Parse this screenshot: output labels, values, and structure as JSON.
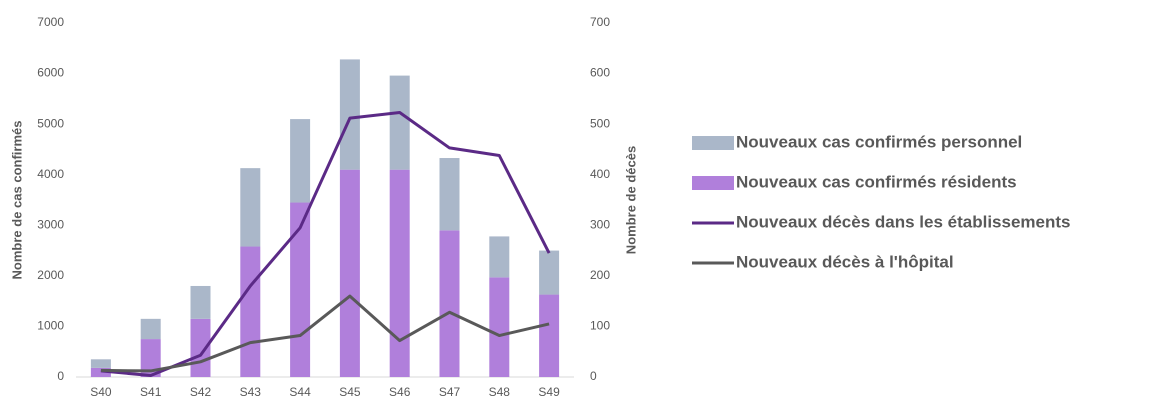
{
  "chart_data": {
    "type": "combo",
    "y_label": "Nombre de cas confirmés",
    "y2_label": "Nombre de décès",
    "categories": [
      "S40",
      "S41",
      "S42",
      "S43",
      "S44",
      "S45",
      "S46",
      "S47",
      "S48",
      "S49"
    ],
    "series": [
      {
        "name": "Nouveaux cas confirmés personnel",
        "type": "bar",
        "color": "#aab7c9",
        "values": [
          170,
          400,
          650,
          1550,
          1650,
          2180,
          1860,
          1430,
          810,
          870
        ]
      },
      {
        "name": "Nouveaux cas confirmés résidents",
        "type": "bar",
        "color": "#b07fdb",
        "values": [
          180,
          750,
          1150,
          2580,
          3450,
          4100,
          4100,
          2900,
          1970,
          1630
        ]
      },
      {
        "name": "Nouveaux décès dans les établissements",
        "type": "line",
        "axis": "y2",
        "color": "#5b2a86",
        "values": [
          12,
          3,
          43,
          180,
          295,
          512,
          523,
          453,
          438,
          245
        ]
      },
      {
        "name": "Nouveaux décès à l'hôpital",
        "type": "line",
        "axis": "y2",
        "color": "#595959",
        "values": [
          13,
          12,
          30,
          68,
          82,
          160,
          72,
          128,
          82,
          105
        ]
      }
    ],
    "ylim": [
      0,
      7000
    ],
    "yticks": [
      0,
      1000,
      2000,
      3000,
      4000,
      5000,
      6000,
      7000
    ],
    "y2lim": [
      0,
      700
    ],
    "y2ticks": [
      0,
      100,
      200,
      300,
      400,
      500,
      600,
      700
    ],
    "grid": false,
    "legend": "right"
  }
}
